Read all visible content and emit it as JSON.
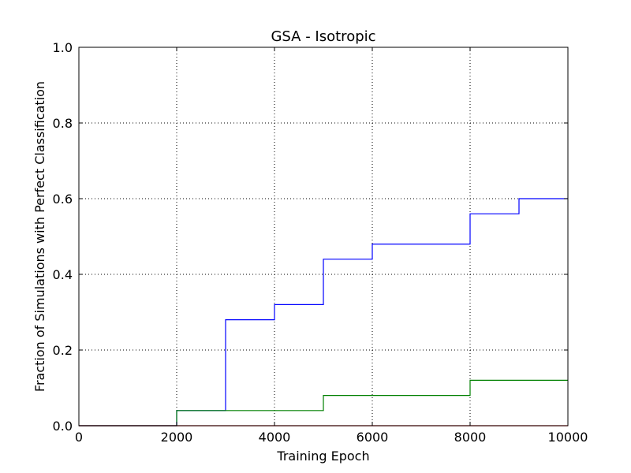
{
  "chart_data": {
    "type": "line",
    "title": "GSA - Isotropic",
    "xlabel": "Training Epoch",
    "ylabel": "Fraction of Simulations with Perfect Classification",
    "xlim": [
      0,
      10000
    ],
    "ylim": [
      0.0,
      1.0
    ],
    "xticks": [
      0,
      2000,
      4000,
      6000,
      8000,
      10000
    ],
    "xtick_labels": [
      "0",
      "2000",
      "4000",
      "6000",
      "8000",
      "10000"
    ],
    "yticks": [
      0.0,
      0.2,
      0.4,
      0.6,
      0.8,
      1.0
    ],
    "ytick_labels": [
      "0.0",
      "0.2",
      "0.4",
      "0.6",
      "0.8",
      "1.0"
    ],
    "grid": true,
    "step": "post",
    "series": [
      {
        "color": "#0000ff",
        "x": [
          0,
          2000,
          3000,
          4000,
          5000,
          6000,
          8000,
          9000,
          10000
        ],
        "y": [
          0.0,
          0.04,
          0.28,
          0.32,
          0.44,
          0.48,
          0.56,
          0.6,
          0.6
        ]
      },
      {
        "color": "#008000",
        "x": [
          0,
          2000,
          5000,
          8000,
          10000
        ],
        "y": [
          0.0,
          0.04,
          0.08,
          0.12,
          0.12
        ]
      },
      {
        "color": "#ff0000",
        "x": [
          0,
          10000
        ],
        "y": [
          0.0,
          0.0
        ]
      }
    ]
  }
}
